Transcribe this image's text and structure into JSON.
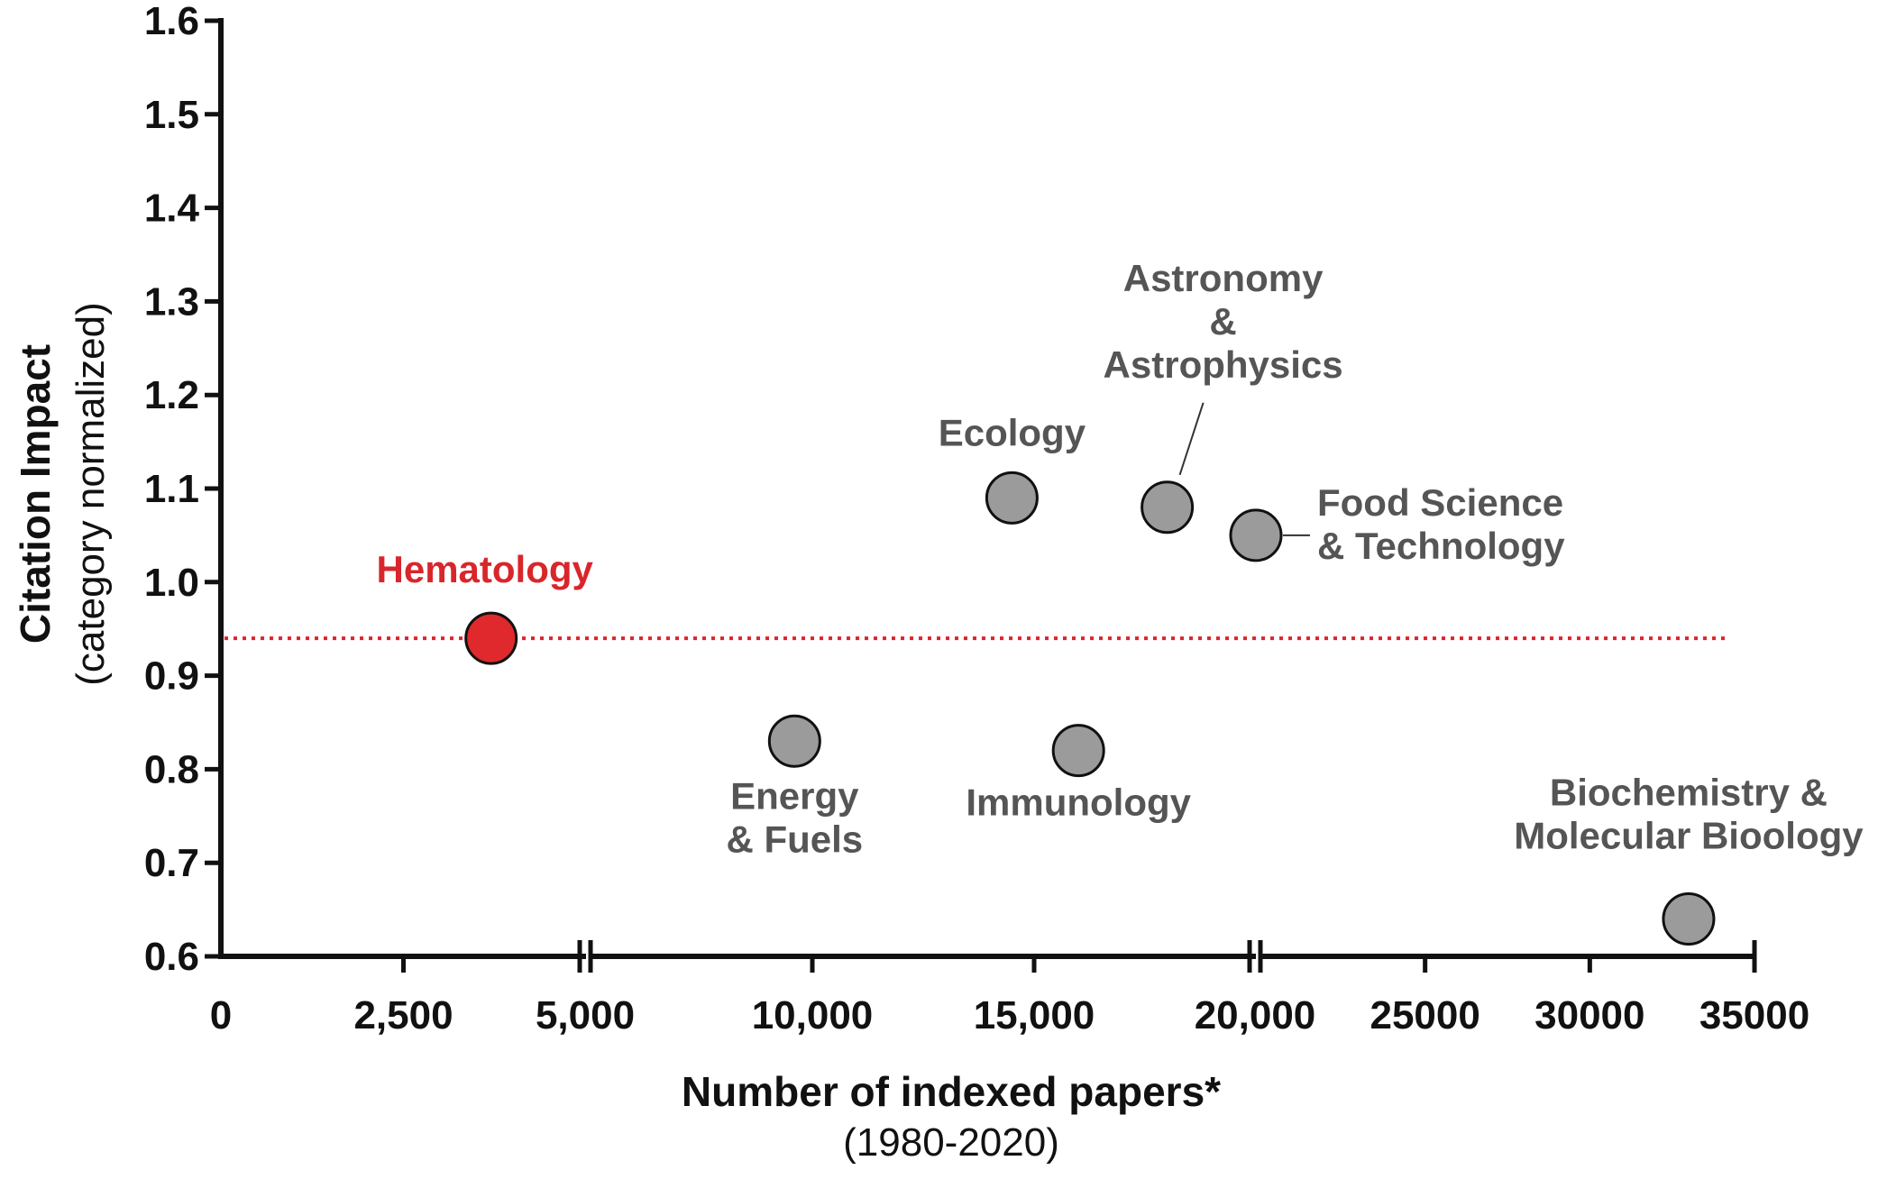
{
  "chart_data": {
    "type": "scatter",
    "title": "",
    "xlabel": "Number of indexed papers*",
    "xlabel_sub": "(1980-2020)",
    "ylabel": "Citation Impact",
    "ylabel_sub": "(category normalized)",
    "ylim": [
      0.6,
      1.6
    ],
    "y_ticks": [
      "0.6",
      "0.7",
      "0.8",
      "0.9",
      "1.0",
      "1.1",
      "1.2",
      "1.3",
      "1.4",
      "1.5",
      "1.6"
    ],
    "x_scale": "segmented (axis breaks after 5,000 and after 20,000)",
    "x_segments": [
      {
        "range": [
          0,
          5000
        ],
        "ticks": [
          {
            "value": 0,
            "label": "0"
          },
          {
            "value": 2500,
            "label": "2,500"
          },
          {
            "value": 5000,
            "label": "5,000"
          }
        ]
      },
      {
        "range": [
          5000,
          20000
        ],
        "ticks": [
          {
            "value": 10000,
            "label": "10,000"
          },
          {
            "value": 15000,
            "label": "15,000"
          },
          {
            "value": 20000,
            "label": "20,000"
          }
        ]
      },
      {
        "range": [
          20000,
          35000
        ],
        "ticks": [
          {
            "value": 25000,
            "label": "25000"
          },
          {
            "value": 30000,
            "label": "30000"
          },
          {
            "value": 35000,
            "label": "35000"
          }
        ]
      }
    ],
    "reference_line": {
      "y": 0.94,
      "color": "#d9262b",
      "style": "dotted"
    },
    "points": [
      {
        "label": "Hematology",
        "x": 3700,
        "y": 0.94,
        "color": "#e0292c",
        "label_color": "#d9262b"
      },
      {
        "label": "Energy\n& Fuels",
        "x": 9600,
        "y": 0.83,
        "color": "#9b9b9b",
        "label_color": "#555555"
      },
      {
        "label": "Ecology",
        "x": 14500,
        "y": 1.09,
        "color": "#9b9b9b",
        "label_color": "#555555"
      },
      {
        "label": "Immunology",
        "x": 16000,
        "y": 0.82,
        "color": "#9b9b9b",
        "label_color": "#555555"
      },
      {
        "label": "Astronomy\n&\nAstrophysics",
        "x": 18000,
        "y": 1.08,
        "color": "#9b9b9b",
        "label_color": "#555555"
      },
      {
        "label": "Food Science\n& Technology",
        "x": 20000,
        "y": 1.05,
        "color": "#9b9b9b",
        "label_color": "#555555"
      },
      {
        "label": "Biochemistry &\nMolecular Bioology",
        "x": 33000,
        "y": 0.64,
        "color": "#9b9b9b",
        "label_color": "#555555"
      }
    ]
  }
}
